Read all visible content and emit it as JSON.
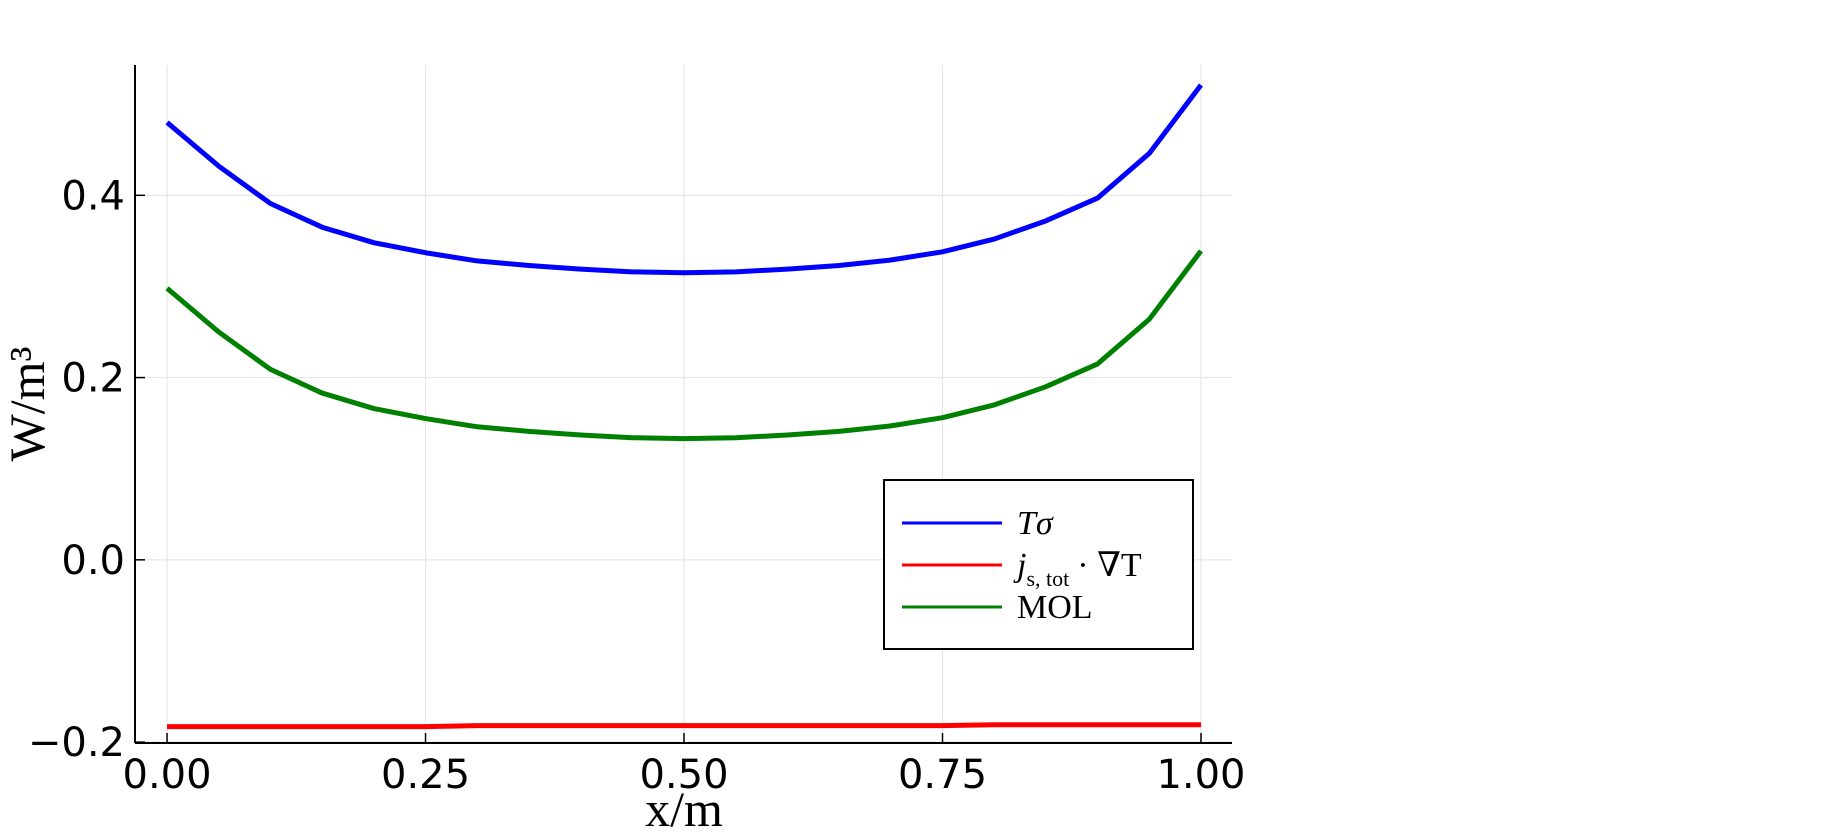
{
  "chart_data": {
    "type": "line",
    "xlabel": "x/m",
    "ylabel": "W/m³",
    "x": [
      0,
      0.05,
      0.1,
      0.15,
      0.2,
      0.25,
      0.3,
      0.35,
      0.4,
      0.45,
      0.5,
      0.55,
      0.6,
      0.65,
      0.7,
      0.75,
      0.8,
      0.85,
      0.9,
      0.95,
      1.0
    ],
    "series": [
      {
        "name": "Tσ",
        "color": "#0000ff",
        "values": [
          0.48,
          0.432,
          0.391,
          0.365,
          0.348,
          0.337,
          0.328,
          0.323,
          0.319,
          0.316,
          0.315,
          0.316,
          0.319,
          0.323,
          0.329,
          0.338,
          0.352,
          0.372,
          0.397,
          0.446,
          0.521
        ]
      },
      {
        "name": "j",
        "subscript": "s, tot",
        "suffix": "· ∇T",
        "color": "#ff0000",
        "values": [
          -0.183,
          -0.183,
          -0.183,
          -0.183,
          -0.183,
          -0.183,
          -0.182,
          -0.182,
          -0.182,
          -0.182,
          -0.182,
          -0.182,
          -0.182,
          -0.182,
          -0.182,
          -0.182,
          -0.181,
          -0.181,
          -0.181,
          -0.181,
          -0.181
        ]
      },
      {
        "name": "MOL",
        "color": "#008000",
        "values": [
          0.298,
          0.25,
          0.209,
          0.183,
          0.166,
          0.155,
          0.146,
          0.141,
          0.137,
          0.134,
          0.133,
          0.134,
          0.137,
          0.141,
          0.147,
          0.156,
          0.17,
          0.19,
          0.215,
          0.264,
          0.339
        ]
      }
    ],
    "xlim": [
      -0.031,
      1.03
    ],
    "ylim": [
      -0.201,
      0.543
    ],
    "xticks": [
      {
        "value": 0,
        "label": "0.00"
      },
      {
        "value": 0.25,
        "label": "0.25"
      },
      {
        "value": 0.5,
        "label": "0.50"
      },
      {
        "value": 0.75,
        "label": "0.75"
      },
      {
        "value": 1,
        "label": "1.00"
      }
    ],
    "yticks": [
      {
        "value": -0.2,
        "label": "−0.2"
      },
      {
        "value": 0,
        "label": "0.0"
      },
      0.2,
      0.4
    ],
    "grid": true,
    "legend": "lower right"
  }
}
